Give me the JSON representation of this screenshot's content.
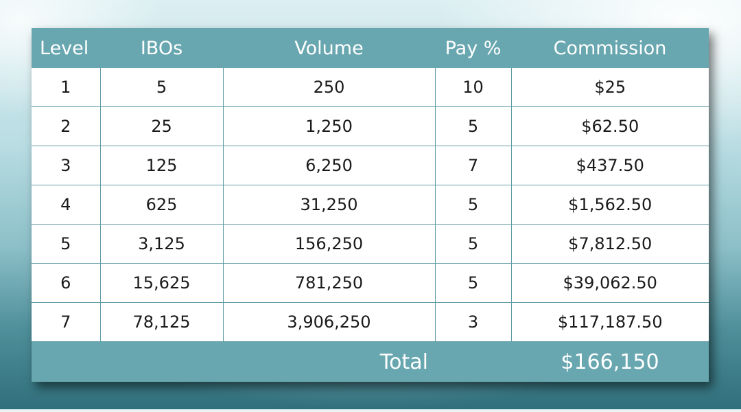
{
  "table": {
    "headers": [
      "Level",
      "IBOs",
      "Volume",
      "Pay %",
      "Commission"
    ],
    "rows": [
      [
        "1",
        "5",
        "250",
        "10",
        "$25"
      ],
      [
        "2",
        "25",
        "1,250",
        "5",
        "$62.50"
      ],
      [
        "3",
        "125",
        "6,250",
        "7",
        "$437.50"
      ],
      [
        "4",
        "625",
        "31,250",
        "5",
        "$1,562.50"
      ],
      [
        "5",
        "3,125",
        "156,250",
        "5",
        "$7,812.50"
      ],
      [
        "6",
        "15,625",
        "781,250",
        "5",
        "$39,062.50"
      ],
      [
        "7",
        "78,125",
        "3,906,250",
        "3",
        "$117,187.50"
      ]
    ],
    "total_label": "Total",
    "total_value": "$166,150"
  },
  "colors": {
    "header_bg": "#68a7b0",
    "grid_line": "#5f9ca6",
    "text": "#1a1a1a"
  }
}
